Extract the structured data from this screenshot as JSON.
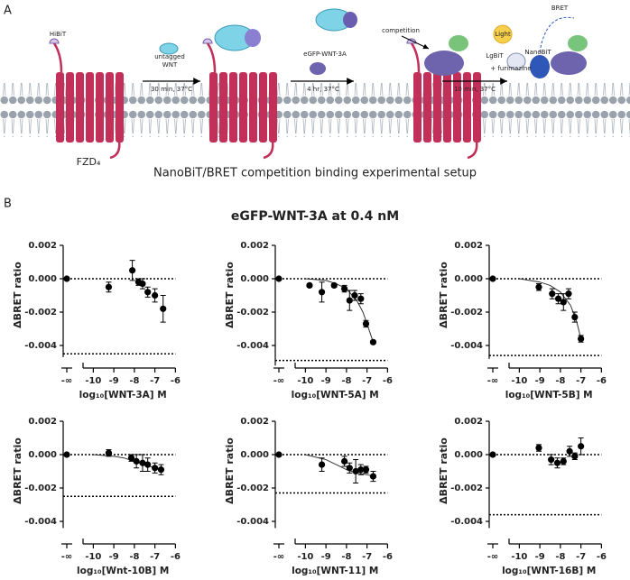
{
  "figure": {
    "panel_a": "A",
    "panel_b": "B",
    "diagram": {
      "hibit": "HiBiT",
      "receptor": "FZD₄",
      "step1_top": "untagged",
      "step1_mid": "WNT",
      "step1_bottom": "30 min, 37°C",
      "step2_top": "eGFP-WNT-3A",
      "step2_bottom": "4 hr, 37°C",
      "competition": "competition",
      "lgbit": "LgBiT",
      "furimazine": "+ furimazine",
      "step3_bottom": "10 min, 37°C",
      "light": "Light",
      "bret": "BRET",
      "nanobit": "NanoBiT",
      "caption": "NanoBiT/BRET competition binding experimental setup"
    },
    "title": "eGFP-WNT-3A at 0.4 nM"
  },
  "chart_data": [
    {
      "type": "scatter",
      "ylabel": "ΔBRET ratio",
      "xlabel": "log₁₀[WNT-3A]  M",
      "x_zero_label": "-∞",
      "zero_value": 0,
      "x": [
        -9.25,
        -8.1,
        -7.8,
        -7.6,
        -7.35,
        -7.0,
        -6.6
      ],
      "values": [
        -0.0005,
        0.0005,
        -0.0002,
        -0.0003,
        -0.0008,
        -0.001,
        -0.0018
      ],
      "errors": [
        0.0003,
        0.0006,
        0.0002,
        0.0003,
        0.0003,
        0.0004,
        0.0008
      ],
      "ref_lines": [
        0,
        -0.0045
      ],
      "xlim": [
        -10.5,
        -6
      ],
      "xticks": [
        -10,
        -9,
        -8,
        -7,
        -6
      ],
      "ylim": [
        -0.0047,
        0.002
      ],
      "yticks": [
        0.002,
        {
          "value": 0,
          "label": "0.000"
        },
        -0.002,
        -0.004
      ],
      "color": "#000000"
    },
    {
      "type": "scatter",
      "ylabel": "ΔBRET ratio",
      "xlabel": "log₁₀[WNT-5A]  M",
      "x_zero_label": "-∞",
      "zero_value": 0,
      "x": [
        -9.8,
        -9.2,
        -8.6,
        -8.1,
        -7.85,
        -7.6,
        -7.3,
        -7.05,
        -6.7
      ],
      "values": [
        -0.0004,
        -0.0008,
        -0.0004,
        -0.0006,
        -0.0013,
        -0.001,
        -0.0012,
        -0.0027,
        -0.0038
      ],
      "errors": [
        0.0001,
        0.0006,
        0.0001,
        0.0002,
        0.0006,
        0.0003,
        0.0003,
        0.0002,
        0.0001
      ],
      "fit": {
        "x": [
          -10,
          -9,
          -8.5,
          -8,
          -7.5,
          -7.2,
          -7,
          -6.7
        ],
        "y": [
          0,
          -0.0001,
          -0.0003,
          -0.0006,
          -0.0013,
          -0.002,
          -0.0027,
          -0.0038
        ]
      },
      "ref_lines": [
        0,
        -0.0049
      ],
      "xlim": [
        -10.5,
        -6
      ],
      "xticks": [
        -10,
        -9,
        -8,
        -7,
        -6
      ],
      "ylim": [
        -0.0052,
        0.002
      ],
      "yticks": [
        0.002,
        {
          "value": 0,
          "label": "0.000"
        },
        -0.002,
        -0.004
      ],
      "color": "#000000"
    },
    {
      "type": "scatter",
      "ylabel": "ΔBRET ratio",
      "xlabel": "log₁₀[WNT-5B]  M",
      "x_zero_label": "-∞",
      "zero_value": 0,
      "x": [
        -9.05,
        -8.4,
        -8.1,
        -7.85,
        -7.6,
        -7.3,
        -7.0
      ],
      "values": [
        -0.0005,
        -0.0009,
        -0.0012,
        -0.0014,
        -0.0009,
        -0.0023,
        -0.0036
      ],
      "errors": [
        0.0002,
        0.0003,
        0.0003,
        0.0005,
        0.0003,
        0.0003,
        0.0002
      ],
      "fit": {
        "x": [
          -10,
          -9,
          -8.5,
          -8,
          -7.5,
          -7.2,
          -7
        ],
        "y": [
          0,
          -0.0002,
          -0.0004,
          -0.0008,
          -0.0016,
          -0.0026,
          -0.0036
        ]
      },
      "ref_lines": [
        0,
        -0.0046
      ],
      "xlim": [
        -10.5,
        -6
      ],
      "xticks": [
        -10,
        -9,
        -8,
        -7,
        -6
      ],
      "ylim": [
        -0.0048,
        0.002
      ],
      "yticks": [
        0.002,
        {
          "value": 0,
          "label": "0.000"
        },
        -0.002,
        -0.004
      ],
      "color": "#000000"
    },
    {
      "type": "scatter",
      "ylabel": "ΔBRET ratio",
      "xlabel": "log₁₀[Wnt-10B]  M",
      "x_zero_label": "-∞",
      "zero_value": 0,
      "x": [
        -9.25,
        -8.15,
        -7.9,
        -7.6,
        -7.35,
        -7.0,
        -6.7
      ],
      "values": [
        0.0001,
        -0.0002,
        -0.0004,
        -0.0005,
        -0.0006,
        -0.0008,
        -0.0009
      ],
      "errors": [
        0.0002,
        0.0002,
        0.0004,
        0.0005,
        0.0004,
        0.0003,
        0.0003
      ],
      "fit": {
        "x": [
          -10,
          -9,
          -8.5,
          -8,
          -7.5,
          -7,
          -6.7
        ],
        "y": [
          0,
          -0.0001,
          -0.0002,
          -0.0004,
          -0.0006,
          -0.0008,
          -0.0009
        ]
      },
      "ref_lines": [
        0,
        -0.0025
      ],
      "xlim": [
        -10.5,
        -6
      ],
      "xticks": [
        -10,
        -9,
        -8,
        -7,
        -6
      ],
      "ylim": [
        -0.0044,
        0.002
      ],
      "yticks": [
        0.002,
        {
          "value": 0,
          "label": "0.000"
        },
        -0.002,
        -0.004
      ],
      "color": "#000000"
    },
    {
      "type": "scatter",
      "ylabel": "ΔBRET ratio",
      "xlabel": "log₁₀[WNT-11]  M",
      "x_zero_label": "-∞",
      "zero_value": 0,
      "x": [
        -9.2,
        -8.1,
        -7.85,
        -7.55,
        -7.3,
        -7.05,
        -6.7
      ],
      "values": [
        -0.0006,
        -0.0004,
        -0.0008,
        -0.001,
        -0.0009,
        -0.0009,
        -0.0013
      ],
      "errors": [
        0.0004,
        0.0003,
        0.0003,
        0.0007,
        0.0003,
        0.0002,
        0.0003
      ],
      "fit": {
        "x": [
          -10,
          -9,
          -8.5,
          -8,
          -7.5,
          -7,
          -6.7
        ],
        "y": [
          0,
          -0.0003,
          -0.0006,
          -0.0009,
          -0.0011,
          -0.0012,
          -0.0013
        ]
      },
      "ref_lines": [
        0,
        -0.0023
      ],
      "xlim": [
        -10.5,
        -6
      ],
      "xticks": [
        -10,
        -9,
        -8,
        -7,
        -6
      ],
      "ylim": [
        -0.0044,
        0.002
      ],
      "yticks": [
        0.002,
        {
          "value": 0,
          "label": "0.000"
        },
        -0.002,
        -0.004
      ],
      "color": "#000000"
    },
    {
      "type": "scatter",
      "ylabel": "ΔBRET ratio",
      "xlabel": "log₁₀[WNT-16B]  M",
      "x_zero_label": "-∞",
      "zero_value": 0,
      "x": [
        -9.05,
        -8.45,
        -8.15,
        -7.85,
        -7.55,
        -7.3,
        -7.0
      ],
      "values": [
        0.0004,
        -0.0003,
        -0.0005,
        -0.0004,
        0.0002,
        -0.0001,
        0.0005
      ],
      "errors": [
        0.0002,
        0.0003,
        0.0003,
        0.0002,
        0.0003,
        0.0002,
        0.0005
      ],
      "ref_lines": [
        0,
        -0.0036
      ],
      "xlim": [
        -10.5,
        -6
      ],
      "xticks": [
        -10,
        -9,
        -8,
        -7,
        -6
      ],
      "ylim": [
        -0.0044,
        0.002
      ],
      "yticks": [
        0.002,
        {
          "value": 0,
          "label": "0.000"
        },
        -0.002,
        -0.004
      ],
      "color": "#000000"
    }
  ]
}
